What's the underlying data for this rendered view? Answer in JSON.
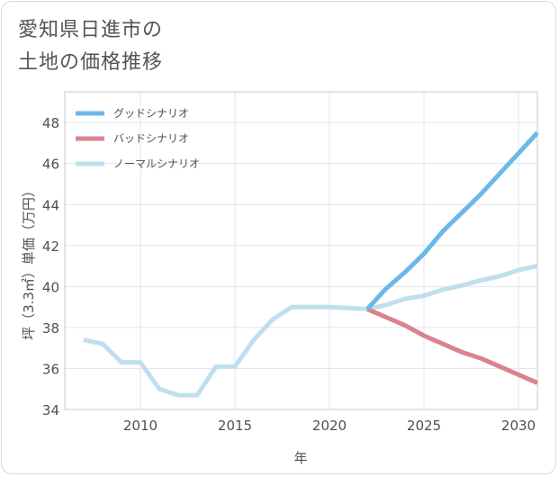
{
  "title_lines": [
    "愛知県日進市の",
    "土地の価格推移"
  ],
  "chart_data": {
    "type": "line",
    "xlabel": "年",
    "ylabel": "坪（3.3㎡）単価（万円）",
    "xlim": [
      2006,
      2031
    ],
    "ylim": [
      34,
      49.5
    ],
    "xticks": [
      2010,
      2015,
      2020,
      2025,
      2030
    ],
    "yticks": [
      34,
      36,
      38,
      40,
      42,
      44,
      46,
      48
    ],
    "legend_position": "top-left",
    "series": [
      {
        "name": "グッドシナリオ",
        "color": "#6cb8e8",
        "x": [
          2022,
          2023,
          2024,
          2025,
          2026,
          2027,
          2028,
          2029,
          2030,
          2031
        ],
        "y": [
          38.9,
          39.9,
          40.7,
          41.6,
          42.7,
          43.6,
          44.5,
          45.5,
          46.5,
          47.5
        ]
      },
      {
        "name": "バッドシナリオ",
        "color": "#d9838f",
        "x": [
          2022,
          2023,
          2024,
          2025,
          2026,
          2027,
          2028,
          2029,
          2030,
          2031
        ],
        "y": [
          38.9,
          38.5,
          38.1,
          37.6,
          37.2,
          36.8,
          36.5,
          36.1,
          35.7,
          35.3
        ]
      },
      {
        "name": "ノーマルシナリオ",
        "color": "#bfdfee",
        "x": [
          2007,
          2008,
          2009,
          2010,
          2011,
          2012,
          2013,
          2014,
          2015,
          2016,
          2017,
          2018,
          2019,
          2020,
          2021,
          2022,
          2023,
          2024,
          2025,
          2026,
          2027,
          2028,
          2029,
          2030,
          2031
        ],
        "y": [
          37.4,
          37.2,
          36.3,
          36.3,
          35.0,
          34.7,
          34.7,
          36.1,
          36.1,
          37.4,
          38.4,
          39.0,
          39.0,
          39.0,
          38.95,
          38.9,
          39.1,
          39.4,
          39.55,
          39.85,
          40.05,
          40.3,
          40.5,
          40.8,
          41.0
        ]
      }
    ]
  }
}
